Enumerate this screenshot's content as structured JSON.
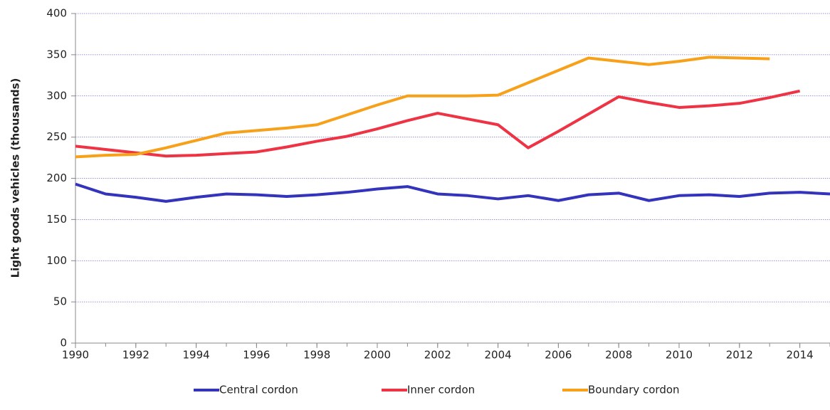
{
  "chart_data": {
    "type": "line",
    "y_label": "Light goods vehicles (thousands)",
    "x": [
      1990,
      1991,
      1992,
      1993,
      1994,
      1995,
      1996,
      1997,
      1998,
      1999,
      2000,
      2001,
      2002,
      2003,
      2004,
      2005,
      2006,
      2007,
      2008,
      2009,
      2010,
      2011,
      2012,
      2013,
      2014,
      2015
    ],
    "series": [
      {
        "name": "Central cordon",
        "color": "#3333bb",
        "values": [
          193,
          181,
          177,
          172,
          177,
          181,
          180,
          178,
          180,
          183,
          187,
          190,
          181,
          179,
          175,
          179,
          173,
          180,
          182,
          173,
          179,
          180,
          178,
          182,
          183,
          181
        ]
      },
      {
        "name": "Inner cordon",
        "color": "#ee3344",
        "values": [
          239,
          235,
          231,
          227,
          228,
          230,
          232,
          238,
          245,
          251,
          260,
          270,
          279,
          272,
          265,
          237,
          257,
          278,
          299,
          292,
          286,
          288,
          291,
          298,
          306,
          null
        ]
      },
      {
        "name": "Boundary cordon",
        "color": "#f7a11a",
        "values": [
          226,
          228,
          229,
          237,
          246,
          255,
          258,
          261,
          265,
          277,
          289,
          300,
          300,
          300,
          301,
          316,
          331,
          346,
          342,
          338,
          342,
          347,
          346,
          345,
          null,
          null
        ]
      }
    ],
    "xlim": [
      1990,
      2015
    ],
    "xticks": [
      1990,
      1992,
      1994,
      1996,
      1998,
      2000,
      2002,
      2004,
      2006,
      2008,
      2010,
      2012,
      2014
    ],
    "ylim": [
      0,
      400
    ],
    "yticks": [
      0,
      50,
      100,
      150,
      200,
      250,
      300,
      350,
      400
    ],
    "grid": true,
    "legend": "bottom"
  }
}
